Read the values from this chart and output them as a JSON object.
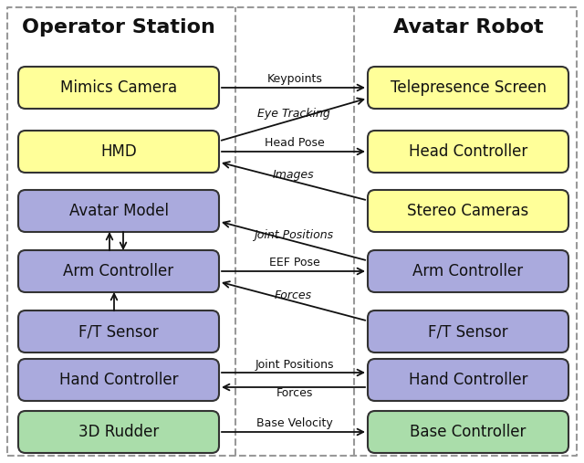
{
  "title_left": "Operator Station",
  "title_right": "Avatar Robot",
  "bg_color": "#ffffff",
  "box_yellow": "#ffff99",
  "box_purple": "#aaaadd",
  "box_green": "#aaddaa",
  "box_edge": "#333333",
  "text_color": "#111111",
  "arrow_color": "#111111",
  "dashed_color": "#999999",
  "left_boxes": [
    {
      "label": "Mimics Camera",
      "color": "yellow",
      "row": 0
    },
    {
      "label": "HMD",
      "color": "yellow",
      "row": 1
    },
    {
      "label": "Avatar Model",
      "color": "purple",
      "row": 2
    },
    {
      "label": "Arm Controller",
      "color": "purple",
      "row": 3
    },
    {
      "label": "F/T Sensor",
      "color": "purple",
      "row": 4
    },
    {
      "label": "Hand Controller",
      "color": "purple",
      "row": 5
    },
    {
      "label": "3D Rudder",
      "color": "green",
      "row": 6
    }
  ],
  "right_boxes": [
    {
      "label": "Telepresence Screen",
      "color": "yellow",
      "row": 0
    },
    {
      "label": "Head Controller",
      "color": "yellow",
      "row": 1
    },
    {
      "label": "Stereo Cameras",
      "color": "yellow",
      "row": 2
    },
    {
      "label": "Arm Controller",
      "color": "purple",
      "row": 3
    },
    {
      "label": "F/T Sensor",
      "color": "purple",
      "row": 4
    },
    {
      "label": "Hand Controller",
      "color": "purple",
      "row": 5
    },
    {
      "label": "Base Controller",
      "color": "green",
      "row": 6
    }
  ]
}
